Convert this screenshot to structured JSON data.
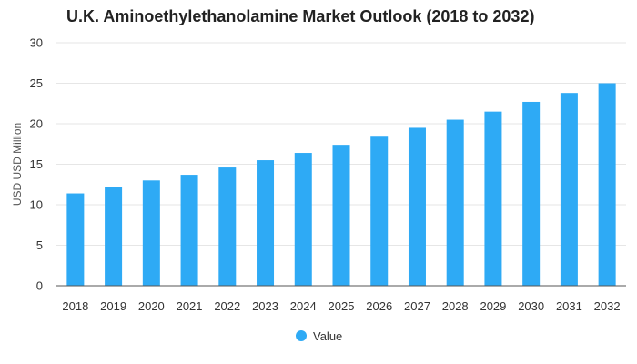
{
  "chart_data": {
    "type": "bar",
    "title": "U.K. Aminoethylethanolamine Market Outlook (2018 to 2032)",
    "xlabel": "",
    "ylabel": "USD USD Million",
    "ylim": [
      0,
      30
    ],
    "yticks": [
      0,
      5,
      10,
      15,
      20,
      25,
      30
    ],
    "categories": [
      "2018",
      "2019",
      "2020",
      "2021",
      "2022",
      "2023",
      "2024",
      "2025",
      "2026",
      "2027",
      "2028",
      "2029",
      "2030",
      "2031",
      "2032"
    ],
    "series": [
      {
        "name": "Value",
        "color": "#2eaaf5",
        "values": [
          11.4,
          12.2,
          13.0,
          13.7,
          14.6,
          15.5,
          16.4,
          17.4,
          18.4,
          19.5,
          20.5,
          21.5,
          22.7,
          23.8,
          25.0
        ]
      }
    ],
    "grid": true,
    "legend": "bottom-center"
  }
}
